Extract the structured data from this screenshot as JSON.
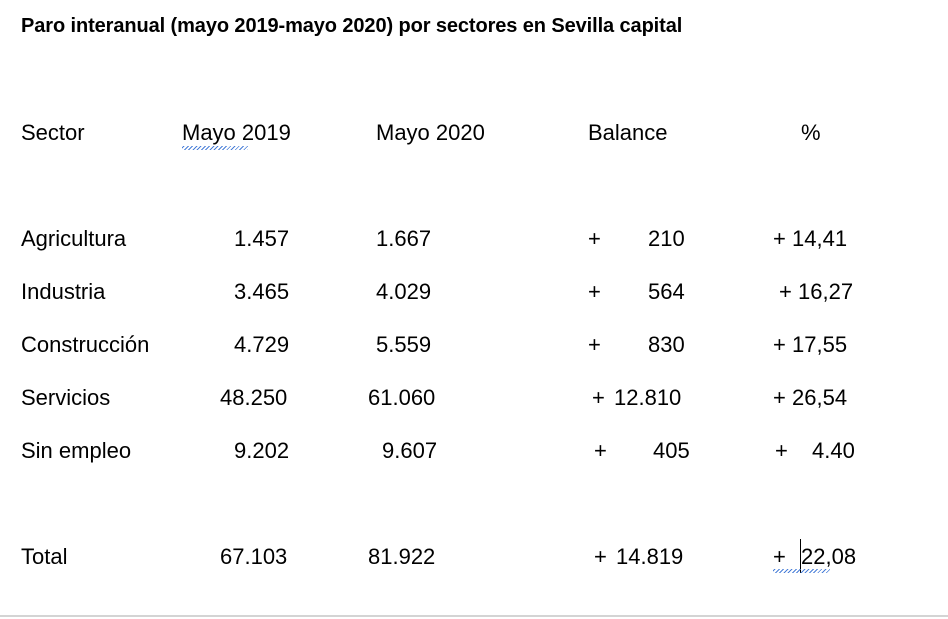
{
  "title": "Paro interanual (mayo 2019-mayo 2020) por sectores en Sevilla capital",
  "headers": {
    "sector": "Sector",
    "may2019": "Mayo 2019",
    "may2020": "Mayo 2020",
    "balance": "Balance",
    "pct": "%"
  },
  "rows": [
    {
      "sector": "Agricultura",
      "may2019": "1.457",
      "may2020": "1.667",
      "balance_sign": "+",
      "balance": "210",
      "pct_sign": "+",
      "pct": "14,41"
    },
    {
      "sector": "Industria",
      "may2019": "3.465",
      "may2020": "4.029",
      "balance_sign": "+",
      "balance": "564",
      "pct_sign": "+",
      "pct": "16,27"
    },
    {
      "sector": "Construcción",
      "may2019": "4.729",
      "may2020": "5.559",
      "balance_sign": "+",
      "balance": "830",
      "pct_sign": "+",
      "pct": "17,55"
    },
    {
      "sector": "Servicios",
      "may2019": "48.250",
      "may2020": "61.060",
      "balance_sign": "+",
      "balance": "12.810",
      "pct_sign": "+",
      "pct": "26,54"
    },
    {
      "sector": "Sin empleo",
      "may2019": "9.202",
      "may2020": "9.607",
      "balance_sign": "+",
      "balance": "405",
      "pct_sign": "+",
      "pct": "4.40"
    }
  ],
  "total": {
    "sector": "Total",
    "may2019": "67.103",
    "may2020": "81.922",
    "balance_sign": "+",
    "balance": "14.819",
    "pct_sign": "+",
    "pct": "22,08"
  }
}
